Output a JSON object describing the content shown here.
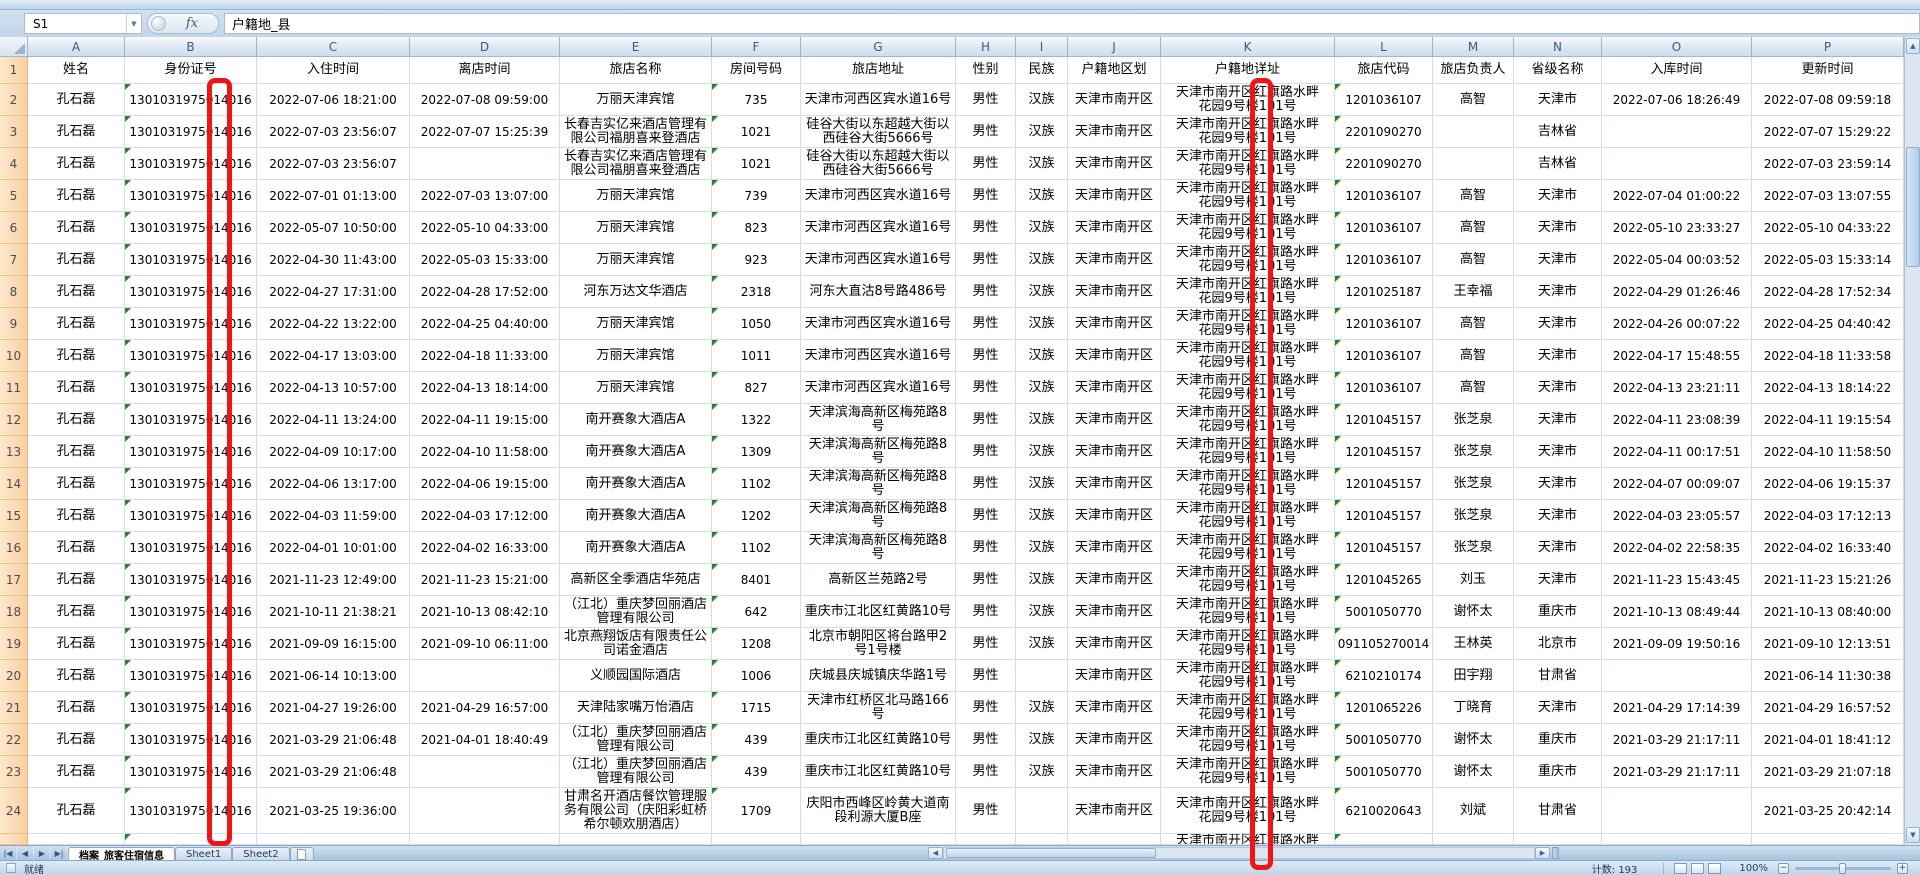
{
  "chrome": {
    "name_box": "S1",
    "fx_label": "fx",
    "formula": "户籍地_县",
    "tabs": [
      "档案_旅客住宿信息",
      "Sheet1",
      "Sheet2"
    ],
    "status_left": "就绪",
    "count_label": "计数: 193",
    "zoom_label": "100%"
  },
  "grid": {
    "column_letters": [
      "A",
      "B",
      "C",
      "D",
      "E",
      "F",
      "G",
      "H",
      "I",
      "J",
      "K",
      "L",
      "M",
      "N",
      "O",
      "P"
    ],
    "headers": [
      "姓名",
      "身份证号",
      "入住时间",
      "离店时间",
      "旅店名称",
      "房间号码",
      "旅店地址",
      "性别",
      "民族",
      "户籍地区划",
      "户籍地详址",
      "旅店代码",
      "旅店负责人",
      "省级名称",
      "入库时间",
      "更新时间"
    ],
    "annotation_color": "#f01414",
    "common": {
      "person_name": "孔石磊",
      "person_id": "1301031975014016",
      "gender": "男性",
      "district": "天津市南开区",
      "k_line1": "天津市南开区红旗路水畔",
      "k_line2": "花园9号楼101号"
    },
    "rows": [
      {
        "n": 2,
        "checkin": "2022-07-06 18:21:00",
        "checkout": "2022-07-08 09:59:00",
        "hotel": "万丽天津宾馆",
        "room": "735",
        "hotel_addr": "天津市河西区宾水道16号",
        "ethnic": "汉族",
        "code": "1201036107",
        "manager": "高智",
        "province": "天津市",
        "entry": "2022-07-06 18:26:49",
        "update": "2022-07-08 09:59:18"
      },
      {
        "n": 3,
        "checkin": "2022-07-03 23:56:07",
        "checkout": "2022-07-07 15:25:39",
        "hotel": "长春吉实亿来酒店管理有限公司福朋喜来登酒店",
        "room": "1021",
        "hotel_addr": "硅谷大街以东超越大街以西硅谷大街5666号",
        "ethnic": "汉族",
        "code": "2201090270",
        "manager": "",
        "province": "吉林省",
        "entry": "",
        "update": "2022-07-07 15:29:22"
      },
      {
        "n": 4,
        "checkin": "2022-07-03 23:56:07",
        "checkout": "",
        "hotel": "长春吉实亿来酒店管理有限公司福朋喜来登酒店",
        "room": "1021",
        "hotel_addr": "硅谷大街以东超越大街以西硅谷大街5666号",
        "ethnic": "汉族",
        "code": "2201090270",
        "manager": "",
        "province": "吉林省",
        "entry": "",
        "update": "2022-07-03 23:59:14"
      },
      {
        "n": 5,
        "checkin": "2022-07-01 01:13:00",
        "checkout": "2022-07-03 13:07:00",
        "hotel": "万丽天津宾馆",
        "room": "739",
        "hotel_addr": "天津市河西区宾水道16号",
        "ethnic": "汉族",
        "code": "1201036107",
        "manager": "高智",
        "province": "天津市",
        "entry": "2022-07-04 01:00:22",
        "update": "2022-07-03 13:07:55"
      },
      {
        "n": 6,
        "checkin": "2022-05-07 10:50:00",
        "checkout": "2022-05-10 04:33:00",
        "hotel": "万丽天津宾馆",
        "room": "823",
        "hotel_addr": "天津市河西区宾水道16号",
        "ethnic": "汉族",
        "code": "1201036107",
        "manager": "高智",
        "province": "天津市",
        "entry": "2022-05-10 23:33:27",
        "update": "2022-05-10 04:33:22"
      },
      {
        "n": 7,
        "checkin": "2022-04-30 11:43:00",
        "checkout": "2022-05-03 15:33:00",
        "hotel": "万丽天津宾馆",
        "room": "923",
        "hotel_addr": "天津市河西区宾水道16号",
        "ethnic": "汉族",
        "code": "1201036107",
        "manager": "高智",
        "province": "天津市",
        "entry": "2022-05-04 00:03:52",
        "update": "2022-05-03 15:33:14"
      },
      {
        "n": 8,
        "checkin": "2022-04-27 17:31:00",
        "checkout": "2022-04-28 17:52:00",
        "hotel": "河东万达文华酒店",
        "room": "2318",
        "hotel_addr": "河东大直沽8号路486号",
        "ethnic": "汉族",
        "code": "1201025187",
        "manager": "王幸福",
        "province": "天津市",
        "entry": "2022-04-29 01:26:46",
        "update": "2022-04-28 17:52:34"
      },
      {
        "n": 9,
        "checkin": "2022-04-22 13:22:00",
        "checkout": "2022-04-25 04:40:00",
        "hotel": "万丽天津宾馆",
        "room": "1050",
        "hotel_addr": "天津市河西区宾水道16号",
        "ethnic": "汉族",
        "code": "1201036107",
        "manager": "高智",
        "province": "天津市",
        "entry": "2022-04-26 00:07:22",
        "update": "2022-04-25 04:40:42"
      },
      {
        "n": 10,
        "checkin": "2022-04-17 13:03:00",
        "checkout": "2022-04-18 11:33:00",
        "hotel": "万丽天津宾馆",
        "room": "1011",
        "hotel_addr": "天津市河西区宾水道16号",
        "ethnic": "汉族",
        "code": "1201036107",
        "manager": "高智",
        "province": "天津市",
        "entry": "2022-04-17 15:48:55",
        "update": "2022-04-18 11:33:58"
      },
      {
        "n": 11,
        "checkin": "2022-04-13 10:57:00",
        "checkout": "2022-04-13 18:14:00",
        "hotel": "万丽天津宾馆",
        "room": "827",
        "hotel_addr": "天津市河西区宾水道16号",
        "ethnic": "汉族",
        "code": "1201036107",
        "manager": "高智",
        "province": "天津市",
        "entry": "2022-04-13 23:21:11",
        "update": "2022-04-13 18:14:22"
      },
      {
        "n": 12,
        "checkin": "2022-04-11 13:24:00",
        "checkout": "2022-04-11 19:15:00",
        "hotel": "南开赛象大酒店A",
        "room": "1322",
        "hotel_addr": "天津滨海高新区梅苑路8号",
        "ethnic": "汉族",
        "code": "1201045157",
        "manager": "张芝泉",
        "province": "天津市",
        "entry": "2022-04-11 23:08:39",
        "update": "2022-04-11 19:15:54"
      },
      {
        "n": 13,
        "checkin": "2022-04-09 10:17:00",
        "checkout": "2022-04-10 11:58:00",
        "hotel": "南开赛象大酒店A",
        "room": "1309",
        "hotel_addr": "天津滨海高新区梅苑路8号",
        "ethnic": "汉族",
        "code": "1201045157",
        "manager": "张芝泉",
        "province": "天津市",
        "entry": "2022-04-11 00:17:51",
        "update": "2022-04-10 11:58:50"
      },
      {
        "n": 14,
        "checkin": "2022-04-06 13:17:00",
        "checkout": "2022-04-06 19:15:00",
        "hotel": "南开赛象大酒店A",
        "room": "1102",
        "hotel_addr": "天津滨海高新区梅苑路8号",
        "ethnic": "汉族",
        "code": "1201045157",
        "manager": "张芝泉",
        "province": "天津市",
        "entry": "2022-04-07 00:09:07",
        "update": "2022-04-06 19:15:37"
      },
      {
        "n": 15,
        "checkin": "2022-04-03 11:59:00",
        "checkout": "2022-04-03 17:12:00",
        "hotel": "南开赛象大酒店A",
        "room": "1202",
        "hotel_addr": "天津滨海高新区梅苑路8号",
        "ethnic": "汉族",
        "code": "1201045157",
        "manager": "张芝泉",
        "province": "天津市",
        "entry": "2022-04-03 23:05:57",
        "update": "2022-04-03 17:12:13"
      },
      {
        "n": 16,
        "checkin": "2022-04-01 10:01:00",
        "checkout": "2022-04-02 16:33:00",
        "hotel": "南开赛象大酒店A",
        "room": "1102",
        "hotel_addr": "天津滨海高新区梅苑路8号",
        "ethnic": "汉族",
        "code": "1201045157",
        "manager": "张芝泉",
        "province": "天津市",
        "entry": "2022-04-02 22:58:35",
        "update": "2022-04-02 16:33:40"
      },
      {
        "n": 17,
        "checkin": "2021-11-23 12:49:00",
        "checkout": "2021-11-23 15:21:00",
        "hotel": "高新区全季酒店华苑店",
        "room": "8401",
        "hotel_addr": "高新区兰苑路2号",
        "ethnic": "汉族",
        "code": "1201045265",
        "manager": "刘玉",
        "province": "天津市",
        "entry": "2021-11-23 15:43:45",
        "update": "2021-11-23 15:21:26"
      },
      {
        "n": 18,
        "checkin": "2021-10-11 21:38:21",
        "checkout": "2021-10-13 08:42:10",
        "hotel": "（江北）重庆梦回丽酒店管理有限公司",
        "room": "642",
        "hotel_addr": "重庆市江北区红黄路10号",
        "ethnic": "汉族",
        "code": "5001050770",
        "manager": "谢怀太",
        "province": "重庆市",
        "entry": "2021-10-13 08:49:44",
        "update": "2021-10-13 08:40:00"
      },
      {
        "n": 19,
        "checkin": "2021-09-09 16:15:00",
        "checkout": "2021-09-10 06:11:00",
        "hotel": "北京燕翔饭店有限责任公司诺金酒店",
        "room": "1208",
        "hotel_addr": "北京市朝阳区将台路甲2号1号楼",
        "ethnic": "汉族",
        "code": "091105270014",
        "manager": "王林英",
        "province": "北京市",
        "entry": "2021-09-09 19:50:16",
        "update": "2021-09-10 12:13:51"
      },
      {
        "n": 20,
        "checkin": "2021-06-14 10:13:00",
        "checkout": "",
        "hotel": "义顺园国际酒店",
        "room": "1006",
        "hotel_addr": "庆城县庆城镇庆华路1号",
        "ethnic": "",
        "code": "6210210174",
        "manager": "田宇翔",
        "province": "甘肃省",
        "entry": "",
        "update": "2021-06-14 11:30:38"
      },
      {
        "n": 21,
        "checkin": "2021-04-27 19:26:00",
        "checkout": "2021-04-29 16:57:00",
        "hotel": "天津陆家嘴万怡酒店",
        "room": "1715",
        "hotel_addr": "天津市红桥区北马路166号",
        "ethnic": "汉族",
        "code": "1201065226",
        "manager": "丁晓育",
        "province": "天津市",
        "entry": "2021-04-29 17:14:39",
        "update": "2021-04-29 16:57:52"
      },
      {
        "n": 22,
        "checkin": "2021-03-29 21:06:48",
        "checkout": "2021-04-01 18:40:49",
        "hotel": "（江北）重庆梦回丽酒店管理有限公司",
        "room": "439",
        "hotel_addr": "重庆市江北区红黄路10号",
        "ethnic": "汉族",
        "code": "5001050770",
        "manager": "谢怀太",
        "province": "重庆市",
        "entry": "2021-03-29 21:17:11",
        "update": "2021-04-01 18:41:12"
      },
      {
        "n": 23,
        "checkin": "2021-03-29 21:06:48",
        "checkout": "",
        "hotel": "（江北）重庆梦回丽酒店管理有限公司",
        "room": "439",
        "hotel_addr": "重庆市江北区红黄路10号",
        "ethnic": "汉族",
        "code": "5001050770",
        "manager": "谢怀太",
        "province": "重庆市",
        "entry": "2021-03-29 21:17:11",
        "update": "2021-03-29 21:07:18"
      },
      {
        "n": 24,
        "checkin": "2021-03-25 19:36:00",
        "checkout": "",
        "hotel": "甘肃名开酒店餐饮管理服务有限公司（庆阳彩虹桥希尔顿欢朋酒店）",
        "room": "1709",
        "hotel_addr": "庆阳市西峰区岭黄大道南段利源大厦B座",
        "ethnic": "",
        "code": "6210020643",
        "manager": "刘斌",
        "province": "甘肃省",
        "entry": "",
        "update": "2021-03-25 20:42:14"
      }
    ],
    "partial_row": {
      "k_line1": "天津市南开区红旗路水畔"
    }
  }
}
